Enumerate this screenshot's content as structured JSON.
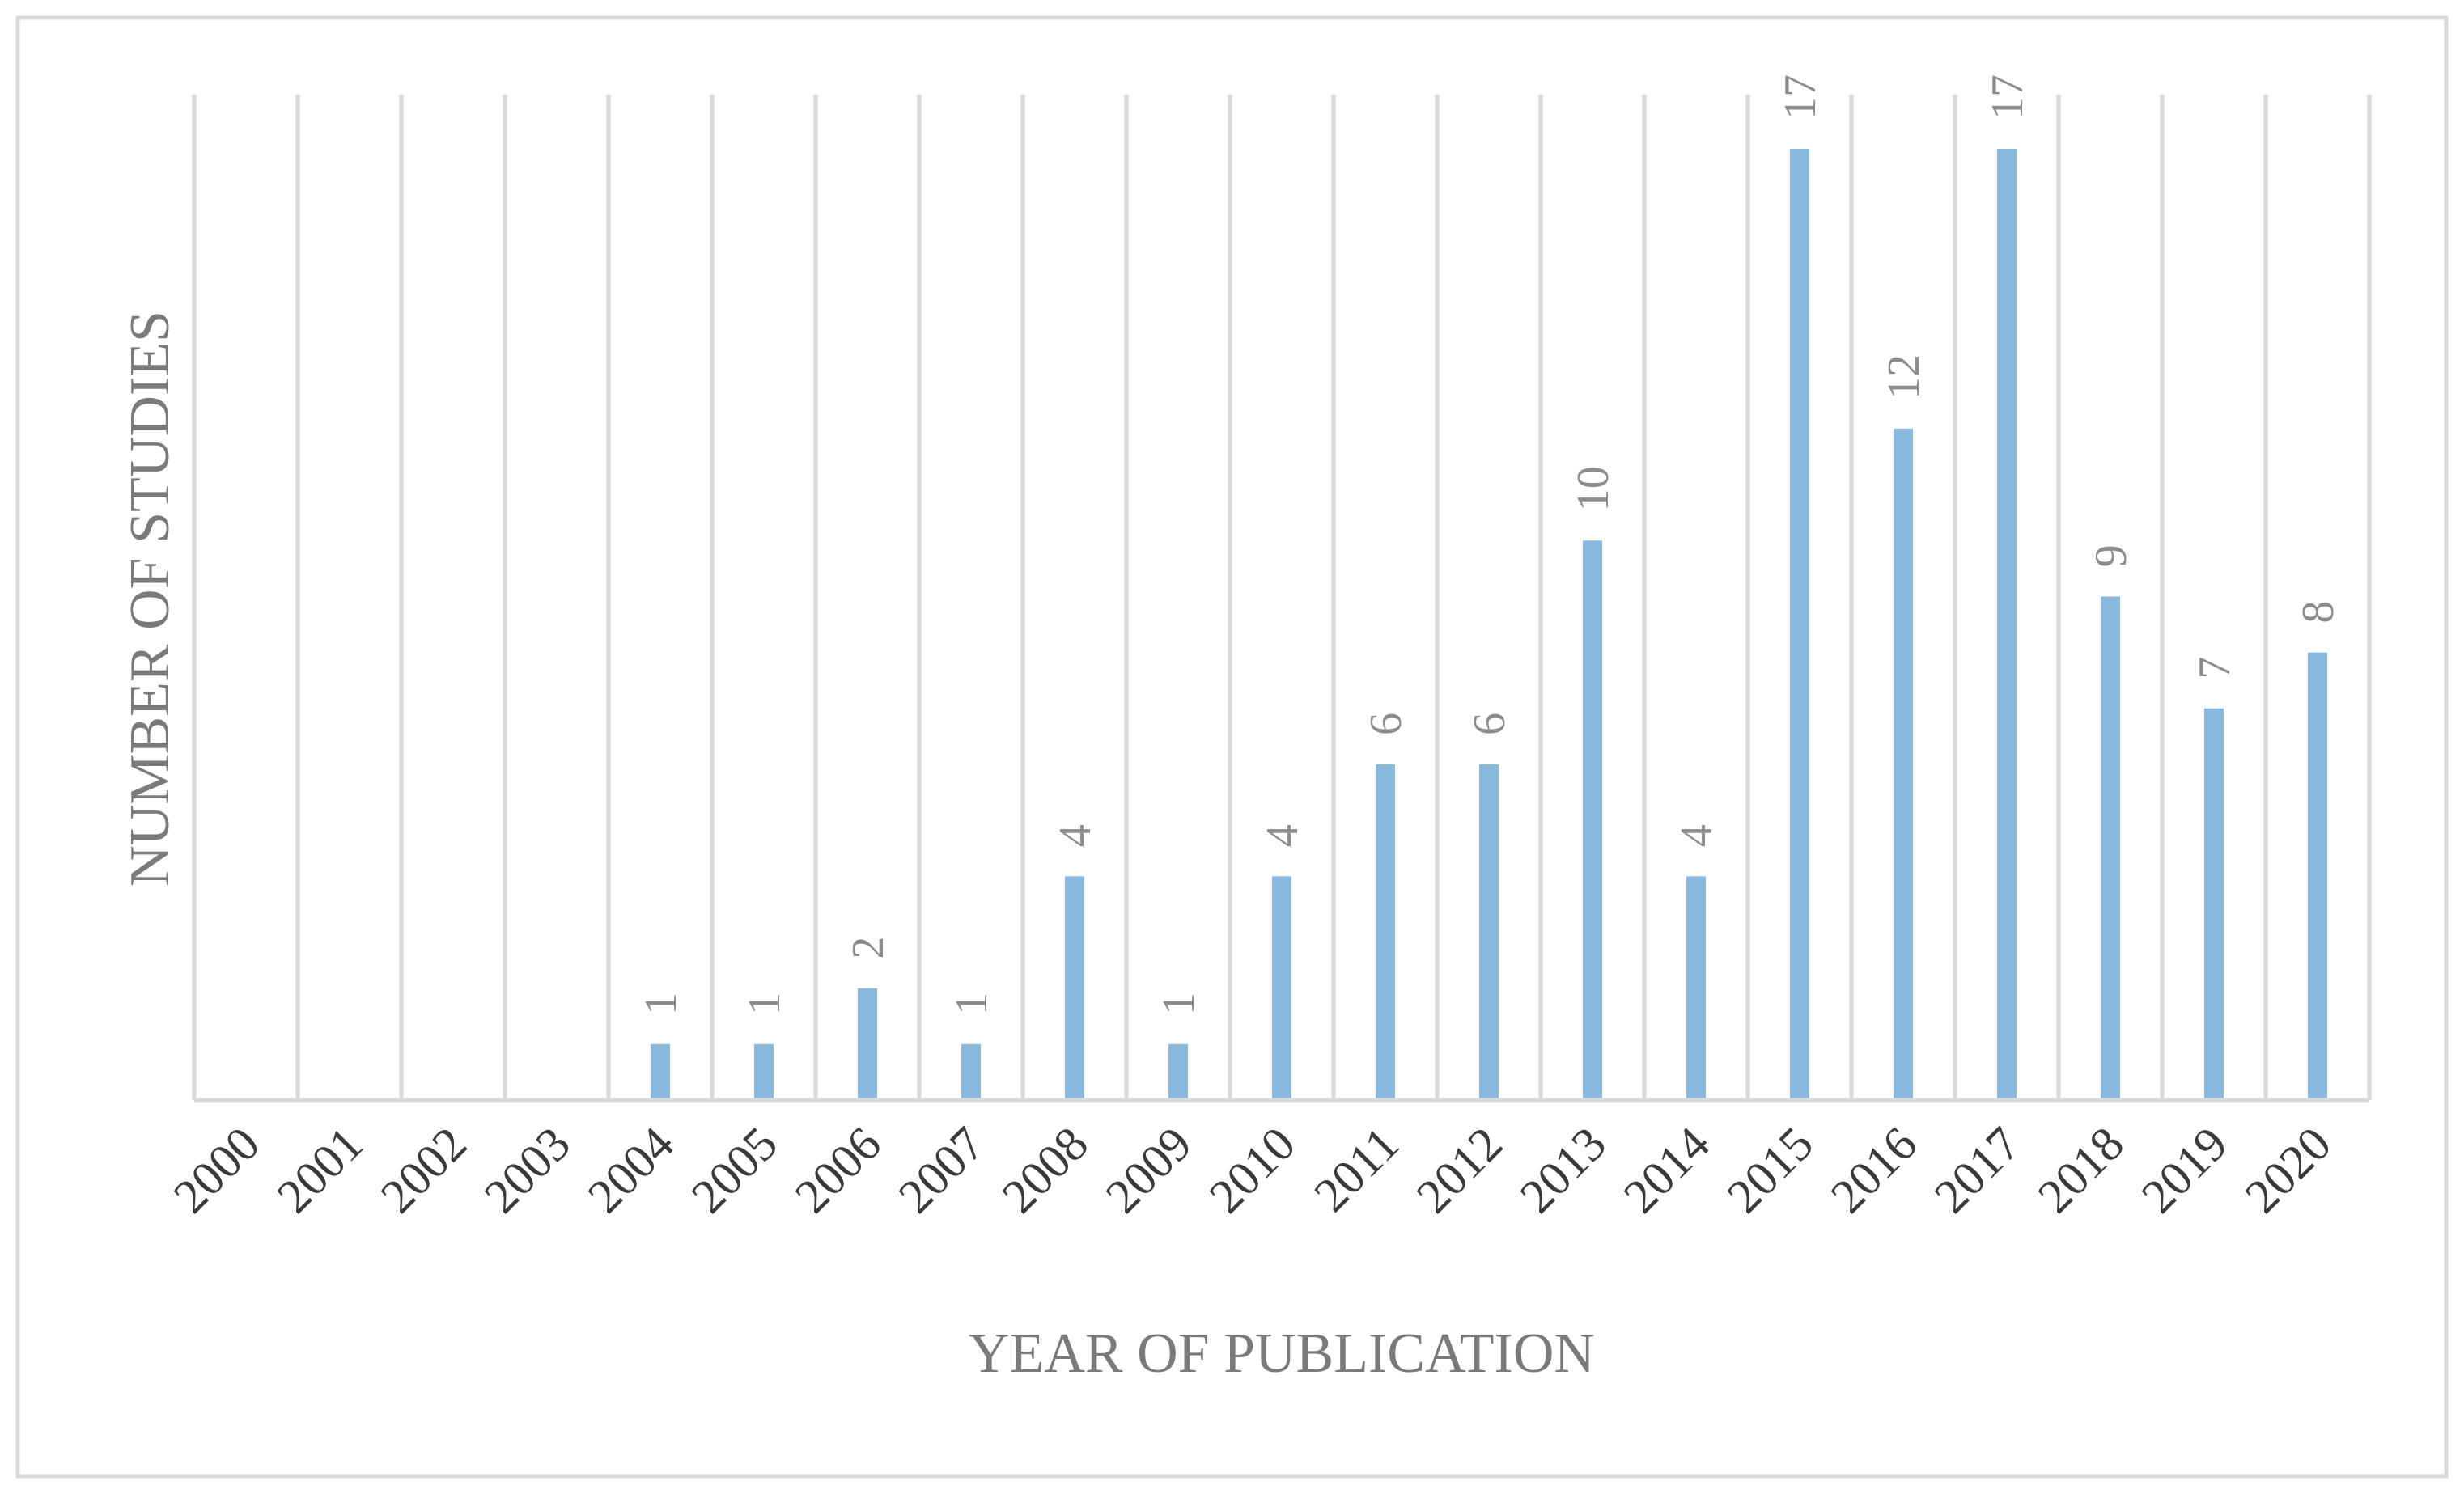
{
  "chart_data": {
    "type": "bar",
    "title": "",
    "xlabel": "YEAR OF PUBLICATION",
    "ylabel": "NUMBER OF STUDIES",
    "categories": [
      "2000",
      "2001",
      "2002",
      "2003",
      "2004",
      "2005",
      "2006",
      "2007",
      "2008",
      "2009",
      "2010",
      "2011",
      "2012",
      "2013",
      "2014",
      "2015",
      "2016",
      "2017",
      "2018",
      "2019",
      "2020"
    ],
    "values": [
      0,
      0,
      0,
      0,
      1,
      1,
      2,
      1,
      4,
      1,
      4,
      6,
      6,
      10,
      4,
      17,
      12,
      17,
      9,
      7,
      8
    ],
    "data_labels": [
      "",
      "",
      "",
      "",
      "1",
      "1",
      "2",
      "1",
      "4",
      "1",
      "4",
      "6",
      "6",
      "10",
      "4",
      "17",
      "12",
      "17",
      "9",
      "7",
      "8"
    ],
    "ylim": [
      0,
      18
    ],
    "grid": "vertical",
    "legend": "none",
    "colors": {
      "bar": "#8ab9e0",
      "grid": "#d9d9d9",
      "axis": "#d9d9d9",
      "frame": "#d9d9d9"
    }
  }
}
